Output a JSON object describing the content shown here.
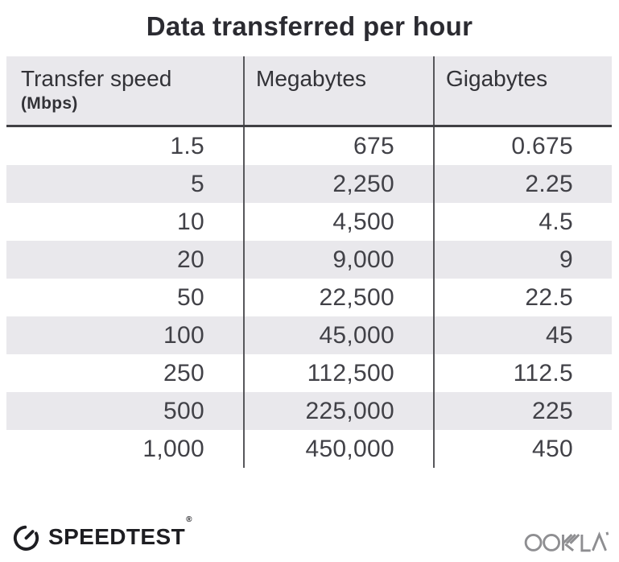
{
  "title": "Data transferred per hour",
  "table": {
    "columns": [
      {
        "label": "Transfer speed",
        "sublabel": "(Mbps)"
      },
      {
        "label": "Megabytes",
        "sublabel": ""
      },
      {
        "label": "Gigabytes",
        "sublabel": ""
      }
    ],
    "rows": [
      [
        "1.5",
        "675",
        "0.675"
      ],
      [
        "5",
        "2,250",
        "2.25"
      ],
      [
        "10",
        "4,500",
        "4.5"
      ],
      [
        "20",
        "9,000",
        "9"
      ],
      [
        "50",
        "22,500",
        "22.5"
      ],
      [
        "100",
        "45,000",
        "45"
      ],
      [
        "250",
        "112,500",
        "112.5"
      ],
      [
        "500",
        "225,000",
        "225"
      ],
      [
        "1,000",
        "450,000",
        "450"
      ]
    ]
  },
  "footer": {
    "brand": "SPEEDTEST",
    "brand_mark": "®",
    "company": "OOKLA"
  },
  "colors": {
    "header_bg": "#e9e8ec",
    "stripe": "#e9e8ec",
    "divider": "#57575b",
    "header_underline": "#404044",
    "title_text": "#2b2b31",
    "number_text": "#414147",
    "speedtest_black": "#1e1e22",
    "ookla_gray": "#8e8e91"
  },
  "chart_data": {
    "type": "table",
    "title": "Data transferred per hour",
    "columns": [
      "Transfer speed (Mbps)",
      "Megabytes",
      "Gigabytes"
    ],
    "rows": [
      [
        1.5,
        675,
        0.675
      ],
      [
        5,
        2250,
        2.25
      ],
      [
        10,
        4500,
        4.5
      ],
      [
        20,
        9000,
        9
      ],
      [
        50,
        22500,
        22.5
      ],
      [
        100,
        45000,
        45
      ],
      [
        250,
        112500,
        112.5
      ],
      [
        500,
        225000,
        225
      ],
      [
        1000,
        450000,
        450
      ]
    ],
    "layout_hints": {
      "zebra_striping": true,
      "column_dividers": true,
      "values_right_aligned": true,
      "source_branding": [
        "Speedtest",
        "Ookla"
      ]
    }
  }
}
